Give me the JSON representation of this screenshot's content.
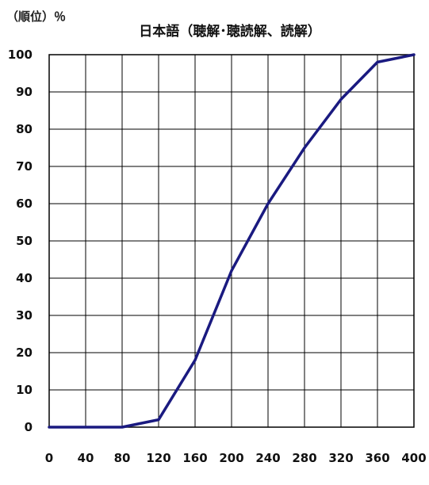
{
  "chart_data": {
    "type": "line",
    "title": "日本語（聴解･聴読解、読解）",
    "ylabel": "（順位）％",
    "xlabel": "",
    "x_ticks": [
      "0",
      "40",
      "80",
      "120",
      "160",
      "200",
      "240",
      "280",
      "320",
      "360",
      "400"
    ],
    "y_ticks": [
      "0",
      "10",
      "20",
      "30",
      "40",
      "50",
      "60",
      "70",
      "80",
      "90",
      "100"
    ],
    "xlim": [
      0,
      400
    ],
    "ylim": [
      0,
      100
    ],
    "grid": true,
    "series": [
      {
        "color": "#1a1a80",
        "x": [
          0,
          40,
          80,
          120,
          160,
          200,
          240,
          280,
          320,
          360,
          400
        ],
        "y": [
          0,
          0,
          0,
          2,
          18,
          42,
          60,
          75,
          88,
          98,
          100
        ]
      }
    ]
  }
}
